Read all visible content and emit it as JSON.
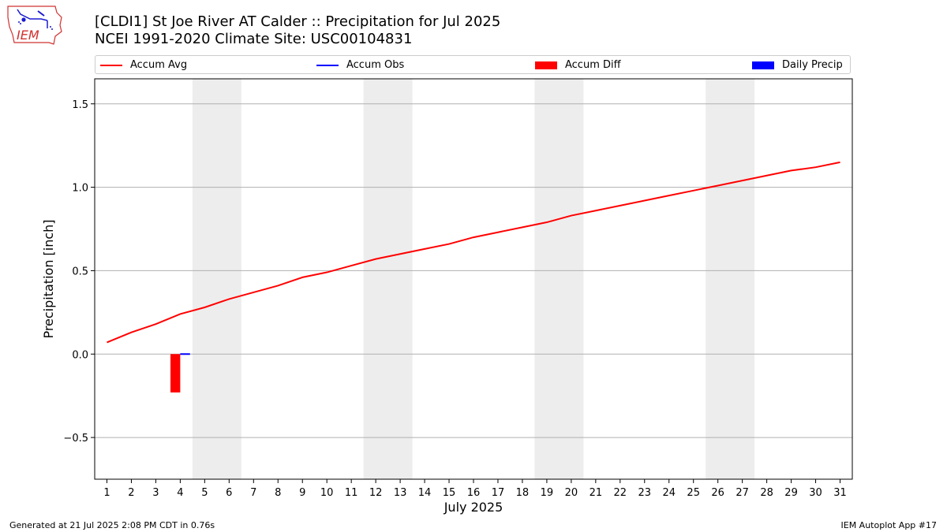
{
  "logo": {
    "text": "IEM"
  },
  "header": {
    "title_line1": "[CLDI1] St Joe River  AT Calder :: Precipitation for Jul 2025",
    "title_line2": "NCEI 1991-2020 Climate Site: USC00104831"
  },
  "legend": {
    "placement": "top",
    "items": [
      {
        "label": "Accum Avg",
        "kind": "line",
        "color": "#ff0000"
      },
      {
        "label": "Accum Obs",
        "kind": "line",
        "color": "#0000ff"
      },
      {
        "label": "Accum Diff",
        "kind": "bar",
        "color": "#ff0000"
      },
      {
        "label": "Daily Precip",
        "kind": "bar",
        "color": "#0000ff"
      }
    ]
  },
  "footer": {
    "left": "Generated at 21 Jul 2025 2:08 PM CDT in 0.76s",
    "right": "IEM Autoplot App #17"
  },
  "chart_data": {
    "type": "line",
    "xlabel": "July 2025",
    "ylabel": "Precipitation [inch]",
    "xlim": [
      0.5,
      31.5
    ],
    "ylim": [
      -0.75,
      1.65
    ],
    "yticks": [
      -0.5,
      0.0,
      0.5,
      1.0,
      1.5
    ],
    "ytick_labels": [
      "−0.5",
      "0.0",
      "0.5",
      "1.0",
      "1.5"
    ],
    "x": [
      1,
      2,
      3,
      4,
      5,
      6,
      7,
      8,
      9,
      10,
      11,
      12,
      13,
      14,
      15,
      16,
      17,
      18,
      19,
      20,
      21,
      22,
      23,
      24,
      25,
      26,
      27,
      28,
      29,
      30,
      31
    ],
    "weekend_bands": [
      [
        4.5,
        6.5
      ],
      [
        11.5,
        13.5
      ],
      [
        18.5,
        20.5
      ],
      [
        25.5,
        27.5
      ]
    ],
    "grid": "horizontal",
    "series": [
      {
        "name": "Accum Avg",
        "type": "line",
        "color": "#ff0000",
        "values": [
          0.07,
          0.13,
          0.18,
          0.24,
          0.28,
          0.33,
          0.37,
          0.41,
          0.46,
          0.49,
          0.53,
          0.57,
          0.6,
          0.63,
          0.66,
          0.7,
          0.73,
          0.76,
          0.79,
          0.83,
          0.86,
          0.89,
          0.92,
          0.95,
          0.98,
          1.01,
          1.04,
          1.07,
          1.1,
          1.12,
          1.15
        ]
      },
      {
        "name": "Accum Obs",
        "type": "line",
        "color": "#0000ff",
        "x": [
          4
        ],
        "values": [
          0.0
        ]
      },
      {
        "name": "Accum Diff",
        "type": "bar",
        "color": "#ff0000",
        "x": [
          4
        ],
        "values": [
          -0.23
        ]
      },
      {
        "name": "Daily Precip",
        "type": "bar",
        "color": "#0000ff",
        "x": [
          4
        ],
        "values": [
          0.0
        ]
      }
    ]
  }
}
